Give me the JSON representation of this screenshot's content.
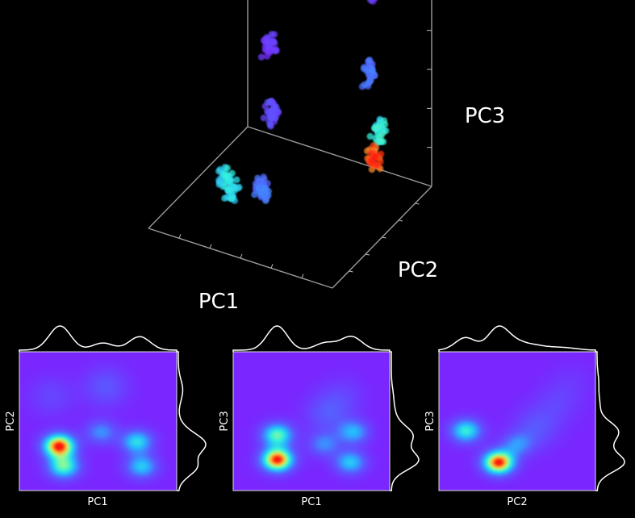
{
  "chart_data": [
    {
      "type": "scatter",
      "projection": "3d",
      "background": "#000000",
      "xlabel": "PC1",
      "ylabel": "PC2",
      "zlabel": "PC3",
      "grid": false,
      "colormap": "rainbow (purple = low density, red = high density)",
      "clusters": [
        {
          "x": 0.25,
          "y": 0.88,
          "z": 0.1,
          "density": 1.0,
          "n": 30
        },
        {
          "x": 0.22,
          "y": 0.9,
          "z": 0.22,
          "density": 0.58,
          "n": 28
        },
        {
          "x": 0.3,
          "y": 0.92,
          "z": 0.45,
          "density": 0.3,
          "n": 30
        },
        {
          "x": 0.32,
          "y": 0.95,
          "z": 0.78,
          "density": 0.15,
          "n": 22
        },
        {
          "x": 0.55,
          "y": 0.3,
          "z": 0.15,
          "density": 0.3,
          "n": 40
        },
        {
          "x": 0.7,
          "y": 0.3,
          "z": 0.1,
          "density": 0.52,
          "n": 30
        },
        {
          "x": 0.78,
          "y": 0.35,
          "z": 0.12,
          "density": 0.55,
          "n": 26
        },
        {
          "x": 0.62,
          "y": 0.55,
          "z": 0.35,
          "density": 0.18,
          "n": 38
        },
        {
          "x": 0.72,
          "y": 0.7,
          "z": 0.55,
          "density": 0.12,
          "n": 32
        },
        {
          "x": 0.85,
          "y": 0.75,
          "z": 0.8,
          "density": 0.08,
          "n": 16
        }
      ]
    },
    {
      "type": "heatmap",
      "xlabel": "PC1",
      "ylabel": "PC2",
      "colormap": "rainbow",
      "peaks": [
        {
          "x": 0.25,
          "y": 0.32,
          "intensity": 1.0
        },
        {
          "x": 0.28,
          "y": 0.17,
          "intensity": 0.62
        },
        {
          "x": 0.75,
          "y": 0.35,
          "intensity": 0.5
        },
        {
          "x": 0.78,
          "y": 0.17,
          "intensity": 0.45
        },
        {
          "x": 0.52,
          "y": 0.42,
          "intensity": 0.32
        },
        {
          "x": 0.55,
          "y": 0.75,
          "intensity": 0.18
        },
        {
          "x": 0.2,
          "y": 0.68,
          "intensity": 0.12
        }
      ]
    },
    {
      "type": "heatmap",
      "xlabel": "PC1",
      "ylabel": "PC3",
      "colormap": "rainbow",
      "peaks": [
        {
          "x": 0.28,
          "y": 0.22,
          "intensity": 1.0
        },
        {
          "x": 0.28,
          "y": 0.4,
          "intensity": 0.62
        },
        {
          "x": 0.75,
          "y": 0.2,
          "intensity": 0.45
        },
        {
          "x": 0.77,
          "y": 0.42,
          "intensity": 0.4
        },
        {
          "x": 0.58,
          "y": 0.33,
          "intensity": 0.3
        },
        {
          "x": 0.6,
          "y": 0.55,
          "intensity": 0.18
        },
        {
          "x": 0.7,
          "y": 0.68,
          "intensity": 0.1
        }
      ]
    },
    {
      "type": "heatmap",
      "xlabel": "PC2",
      "ylabel": "PC3",
      "colormap": "rainbow",
      "peaks": [
        {
          "x": 0.38,
          "y": 0.2,
          "intensity": 1.0
        },
        {
          "x": 0.17,
          "y": 0.43,
          "intensity": 0.55
        },
        {
          "x": 0.5,
          "y": 0.33,
          "intensity": 0.3
        },
        {
          "x": 0.62,
          "y": 0.45,
          "intensity": 0.18
        },
        {
          "x": 0.75,
          "y": 0.62,
          "intensity": 0.1
        },
        {
          "x": 0.85,
          "y": 0.78,
          "intensity": 0.06
        }
      ]
    }
  ]
}
